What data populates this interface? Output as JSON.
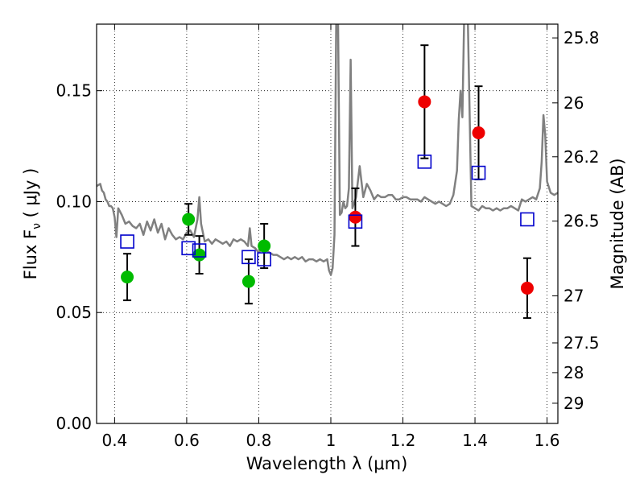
{
  "chart_data": {
    "type": "scatter",
    "xlabel": "Wavelength  λ (μm)",
    "ylabel": "Flux  F",
    "ylabel_sub": "ν",
    "ylabel_unit": " ( μJy )",
    "y2label": "Magnitude (AB)",
    "xlim": [
      0.35,
      1.63
    ],
    "ylim": [
      0.0,
      0.18
    ],
    "xticks": [
      0.4,
      0.6,
      0.8,
      1.0,
      1.2,
      1.4,
      1.6
    ],
    "xtick_labels": [
      "0.4",
      "0.6",
      "0.8",
      "1",
      "1.2",
      "1.4",
      "1.6"
    ],
    "yticks": [
      0.0,
      0.05,
      0.1,
      0.15
    ],
    "ytick_labels": [
      "0.00",
      "0.05",
      "0.10",
      "0.15"
    ],
    "y2ticks": [
      {
        "label": "25.8",
        "flux": 0.1738
      },
      {
        "label": "26",
        "flux": 0.1445
      },
      {
        "label": "26.2",
        "flux": 0.1202
      },
      {
        "label": "26.5",
        "flux": 0.0912
      },
      {
        "label": "27",
        "flux": 0.0575
      },
      {
        "label": "27.5",
        "flux": 0.0363
      },
      {
        "label": "28",
        "flux": 0.0229
      },
      {
        "label": "29",
        "flux": 0.0091
      }
    ],
    "grid": true,
    "colors": {
      "spectrum": "#808080",
      "ground_photometry": "#00bb00",
      "hst_photometry": "#ee0000",
      "model": "#0000cc",
      "errorbar": "#000000"
    },
    "series": [
      {
        "kind": "line",
        "style": "spectrum",
        "points": [
          [
            0.35,
            0.107
          ],
          [
            0.36,
            0.108
          ],
          [
            0.365,
            0.105
          ],
          [
            0.37,
            0.104
          ],
          [
            0.375,
            0.101
          ],
          [
            0.38,
            0.1
          ],
          [
            0.385,
            0.098
          ],
          [
            0.39,
            0.098
          ],
          [
            0.395,
            0.097
          ],
          [
            0.4,
            0.093
          ],
          [
            0.405,
            0.084
          ],
          [
            0.41,
            0.097
          ],
          [
            0.42,
            0.094
          ],
          [
            0.43,
            0.09
          ],
          [
            0.44,
            0.091
          ],
          [
            0.45,
            0.089
          ],
          [
            0.46,
            0.088
          ],
          [
            0.47,
            0.09
          ],
          [
            0.48,
            0.085
          ],
          [
            0.49,
            0.091
          ],
          [
            0.5,
            0.087
          ],
          [
            0.51,
            0.092
          ],
          [
            0.52,
            0.086
          ],
          [
            0.53,
            0.09
          ],
          [
            0.54,
            0.083
          ],
          [
            0.55,
            0.088
          ],
          [
            0.56,
            0.085
          ],
          [
            0.57,
            0.083
          ],
          [
            0.58,
            0.084
          ],
          [
            0.59,
            0.083
          ],
          [
            0.6,
            0.086
          ],
          [
            0.61,
            0.087
          ],
          [
            0.62,
            0.084
          ],
          [
            0.63,
            0.092
          ],
          [
            0.635,
            0.102
          ],
          [
            0.64,
            0.09
          ],
          [
            0.65,
            0.082
          ],
          [
            0.66,
            0.083
          ],
          [
            0.67,
            0.081
          ],
          [
            0.68,
            0.083
          ],
          [
            0.69,
            0.082
          ],
          [
            0.7,
            0.081
          ],
          [
            0.71,
            0.082
          ],
          [
            0.72,
            0.08
          ],
          [
            0.73,
            0.083
          ],
          [
            0.74,
            0.082
          ],
          [
            0.75,
            0.083
          ],
          [
            0.76,
            0.082
          ],
          [
            0.77,
            0.08
          ],
          [
            0.775,
            0.088
          ],
          [
            0.78,
            0.08
          ],
          [
            0.79,
            0.079
          ],
          [
            0.8,
            0.077
          ],
          [
            0.81,
            0.079
          ],
          [
            0.82,
            0.078
          ],
          [
            0.83,
            0.077
          ],
          [
            0.84,
            0.076
          ],
          [
            0.85,
            0.076
          ],
          [
            0.86,
            0.075
          ],
          [
            0.87,
            0.074
          ],
          [
            0.88,
            0.075
          ],
          [
            0.89,
            0.074
          ],
          [
            0.9,
            0.075
          ],
          [
            0.91,
            0.074
          ],
          [
            0.92,
            0.075
          ],
          [
            0.93,
            0.073
          ],
          [
            0.94,
            0.074
          ],
          [
            0.95,
            0.074
          ],
          [
            0.96,
            0.073
          ],
          [
            0.97,
            0.074
          ],
          [
            0.98,
            0.073
          ],
          [
            0.99,
            0.074
          ],
          [
            0.995,
            0.069
          ],
          [
            1.0,
            0.067
          ],
          [
            1.005,
            0.07
          ],
          [
            1.01,
            0.085
          ],
          [
            1.015,
            0.183
          ],
          [
            1.02,
            0.183
          ],
          [
            1.025,
            0.094
          ],
          [
            1.03,
            0.095
          ],
          [
            1.035,
            0.1
          ],
          [
            1.04,
            0.097
          ],
          [
            1.045,
            0.098
          ],
          [
            1.05,
            0.106
          ],
          [
            1.055,
            0.164
          ],
          [
            1.06,
            0.097
          ],
          [
            1.07,
            0.102
          ],
          [
            1.08,
            0.116
          ],
          [
            1.09,
            0.102
          ],
          [
            1.1,
            0.108
          ],
          [
            1.11,
            0.105
          ],
          [
            1.12,
            0.101
          ],
          [
            1.13,
            0.103
          ],
          [
            1.14,
            0.102
          ],
          [
            1.15,
            0.102
          ],
          [
            1.16,
            0.103
          ],
          [
            1.17,
            0.103
          ],
          [
            1.18,
            0.101
          ],
          [
            1.19,
            0.101
          ],
          [
            1.2,
            0.102
          ],
          [
            1.21,
            0.102
          ],
          [
            1.22,
            0.101
          ],
          [
            1.23,
            0.101
          ],
          [
            1.24,
            0.101
          ],
          [
            1.25,
            0.1
          ],
          [
            1.26,
            0.102
          ],
          [
            1.27,
            0.101
          ],
          [
            1.28,
            0.1
          ],
          [
            1.29,
            0.099
          ],
          [
            1.3,
            0.1
          ],
          [
            1.31,
            0.099
          ],
          [
            1.32,
            0.098
          ],
          [
            1.33,
            0.099
          ],
          [
            1.34,
            0.103
          ],
          [
            1.35,
            0.114
          ],
          [
            1.355,
            0.137
          ],
          [
            1.36,
            0.15
          ],
          [
            1.365,
            0.138
          ],
          [
            1.37,
            0.183
          ],
          [
            1.38,
            0.183
          ],
          [
            1.39,
            0.098
          ],
          [
            1.4,
            0.097
          ],
          [
            1.41,
            0.096
          ],
          [
            1.42,
            0.098
          ],
          [
            1.43,
            0.097
          ],
          [
            1.44,
            0.097
          ],
          [
            1.45,
            0.096
          ],
          [
            1.46,
            0.097
          ],
          [
            1.47,
            0.096
          ],
          [
            1.48,
            0.097
          ],
          [
            1.49,
            0.097
          ],
          [
            1.5,
            0.098
          ],
          [
            1.51,
            0.097
          ],
          [
            1.52,
            0.096
          ],
          [
            1.53,
            0.101
          ],
          [
            1.54,
            0.1
          ],
          [
            1.55,
            0.101
          ],
          [
            1.56,
            0.102
          ],
          [
            1.57,
            0.101
          ],
          [
            1.58,
            0.106
          ],
          [
            1.585,
            0.118
          ],
          [
            1.59,
            0.139
          ],
          [
            1.595,
            0.13
          ],
          [
            1.6,
            0.109
          ],
          [
            1.61,
            0.104
          ],
          [
            1.62,
            0.103
          ],
          [
            1.63,
            0.104
          ]
        ]
      },
      {
        "kind": "points",
        "style": "ground_photometry",
        "points": [
          {
            "x": 0.435,
            "y": 0.066,
            "err": 0.0105
          },
          {
            "x": 0.605,
            "y": 0.092,
            "err": 0.007
          },
          {
            "x": 0.635,
            "y": 0.076,
            "err": 0.0085
          },
          {
            "x": 0.772,
            "y": 0.064,
            "err": 0.01
          },
          {
            "x": 0.815,
            "y": 0.08,
            "err": 0.01
          }
        ]
      },
      {
        "kind": "points",
        "style": "hst_photometry",
        "points": [
          {
            "x": 1.068,
            "y": 0.093,
            "err": 0.013
          },
          {
            "x": 1.26,
            "y": 0.145,
            "err": 0.0255
          },
          {
            "x": 1.41,
            "y": 0.131,
            "err": 0.021
          },
          {
            "x": 1.545,
            "y": 0.061,
            "err": 0.0135
          }
        ]
      },
      {
        "kind": "points",
        "style": "model",
        "marker": "square",
        "points": [
          {
            "x": 0.435,
            "y": 0.082
          },
          {
            "x": 0.605,
            "y": 0.079
          },
          {
            "x": 0.635,
            "y": 0.078
          },
          {
            "x": 0.772,
            "y": 0.075
          },
          {
            "x": 0.815,
            "y": 0.074
          },
          {
            "x": 1.068,
            "y": 0.091
          },
          {
            "x": 1.26,
            "y": 0.118
          },
          {
            "x": 1.41,
            "y": 0.113
          },
          {
            "x": 1.545,
            "y": 0.092
          }
        ]
      }
    ]
  }
}
